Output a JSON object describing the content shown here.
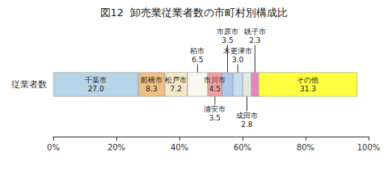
{
  "chart_data": {
    "type": "bar",
    "orientation": "horizontal",
    "stacked": true,
    "title": "図12  卸売業従業者数の市町村別構成比",
    "categories": [
      "従業者数"
    ],
    "series": [
      {
        "name": "千葉市",
        "color": "#b8d4e8",
        "values": [
          27.0
        ]
      },
      {
        "name": "船橋市",
        "color": "#f0c080",
        "values": [
          8.3
        ]
      },
      {
        "name": "松戸市",
        "color": "#f5e8c8",
        "values": [
          7.2
        ]
      },
      {
        "name": "柏市",
        "color": "#f8f8f0",
        "values": [
          6.5
        ]
      },
      {
        "name": "市川市",
        "color": "#f0a0a0",
        "values": [
          4.5
        ]
      },
      {
        "name": "市原市",
        "color": "#b0c8e8",
        "values": [
          3.5
        ]
      },
      {
        "name": "木更津市",
        "color": "#c8ddf0",
        "values": [
          3.0
        ]
      },
      {
        "name": "成田市",
        "color": "#e0e8e0",
        "values": [
          2.8
        ]
      },
      {
        "name": "銚子市",
        "color": "#f080c0",
        "values": [
          2.3
        ]
      },
      {
        "name": "その他",
        "color": "#ffff40",
        "values": [
          31.3
        ]
      }
    ],
    "xlim": [
      0,
      100
    ],
    "xticks": [
      {
        "value": 0,
        "label": "0%"
      },
      {
        "value": 20,
        "label": "20%"
      },
      {
        "value": 40,
        "label": "40%"
      },
      {
        "value": 60,
        "label": "60%"
      },
      {
        "value": 80,
        "label": "80%"
      },
      {
        "value": 100,
        "label": "100%"
      }
    ],
    "grid": false,
    "annotations": [
      {
        "series": "千葉市",
        "position": "inside",
        "text": "千葉市\n27.0"
      },
      {
        "series": "船橋市",
        "position": "inside",
        "text": "船橋市\n8.3"
      },
      {
        "series": "松戸市",
        "position": "inside",
        "text": "松戸市\n7.2"
      },
      {
        "series": "市川市",
        "position": "inside",
        "text": "市川市\n4.5"
      },
      {
        "series": "その他",
        "position": "inside",
        "text": "その他\n31.3"
      },
      {
        "series": "柏市",
        "position": "above",
        "text": "柏市\n6.5"
      },
      {
        "series": "市原市",
        "position": "above",
        "text": "市原市\n3.5"
      },
      {
        "series": "木更津市",
        "position": "above",
        "text": "木更津市\n3.0"
      },
      {
        "series": "銚子市",
        "position": "above",
        "text": "銚子市\n2.3"
      },
      {
        "series": "市川市",
        "position": "below",
        "text": "浦安市\n3.5"
      },
      {
        "series": "成田市",
        "position": "below",
        "text": "成田市\n2.8"
      }
    ]
  }
}
